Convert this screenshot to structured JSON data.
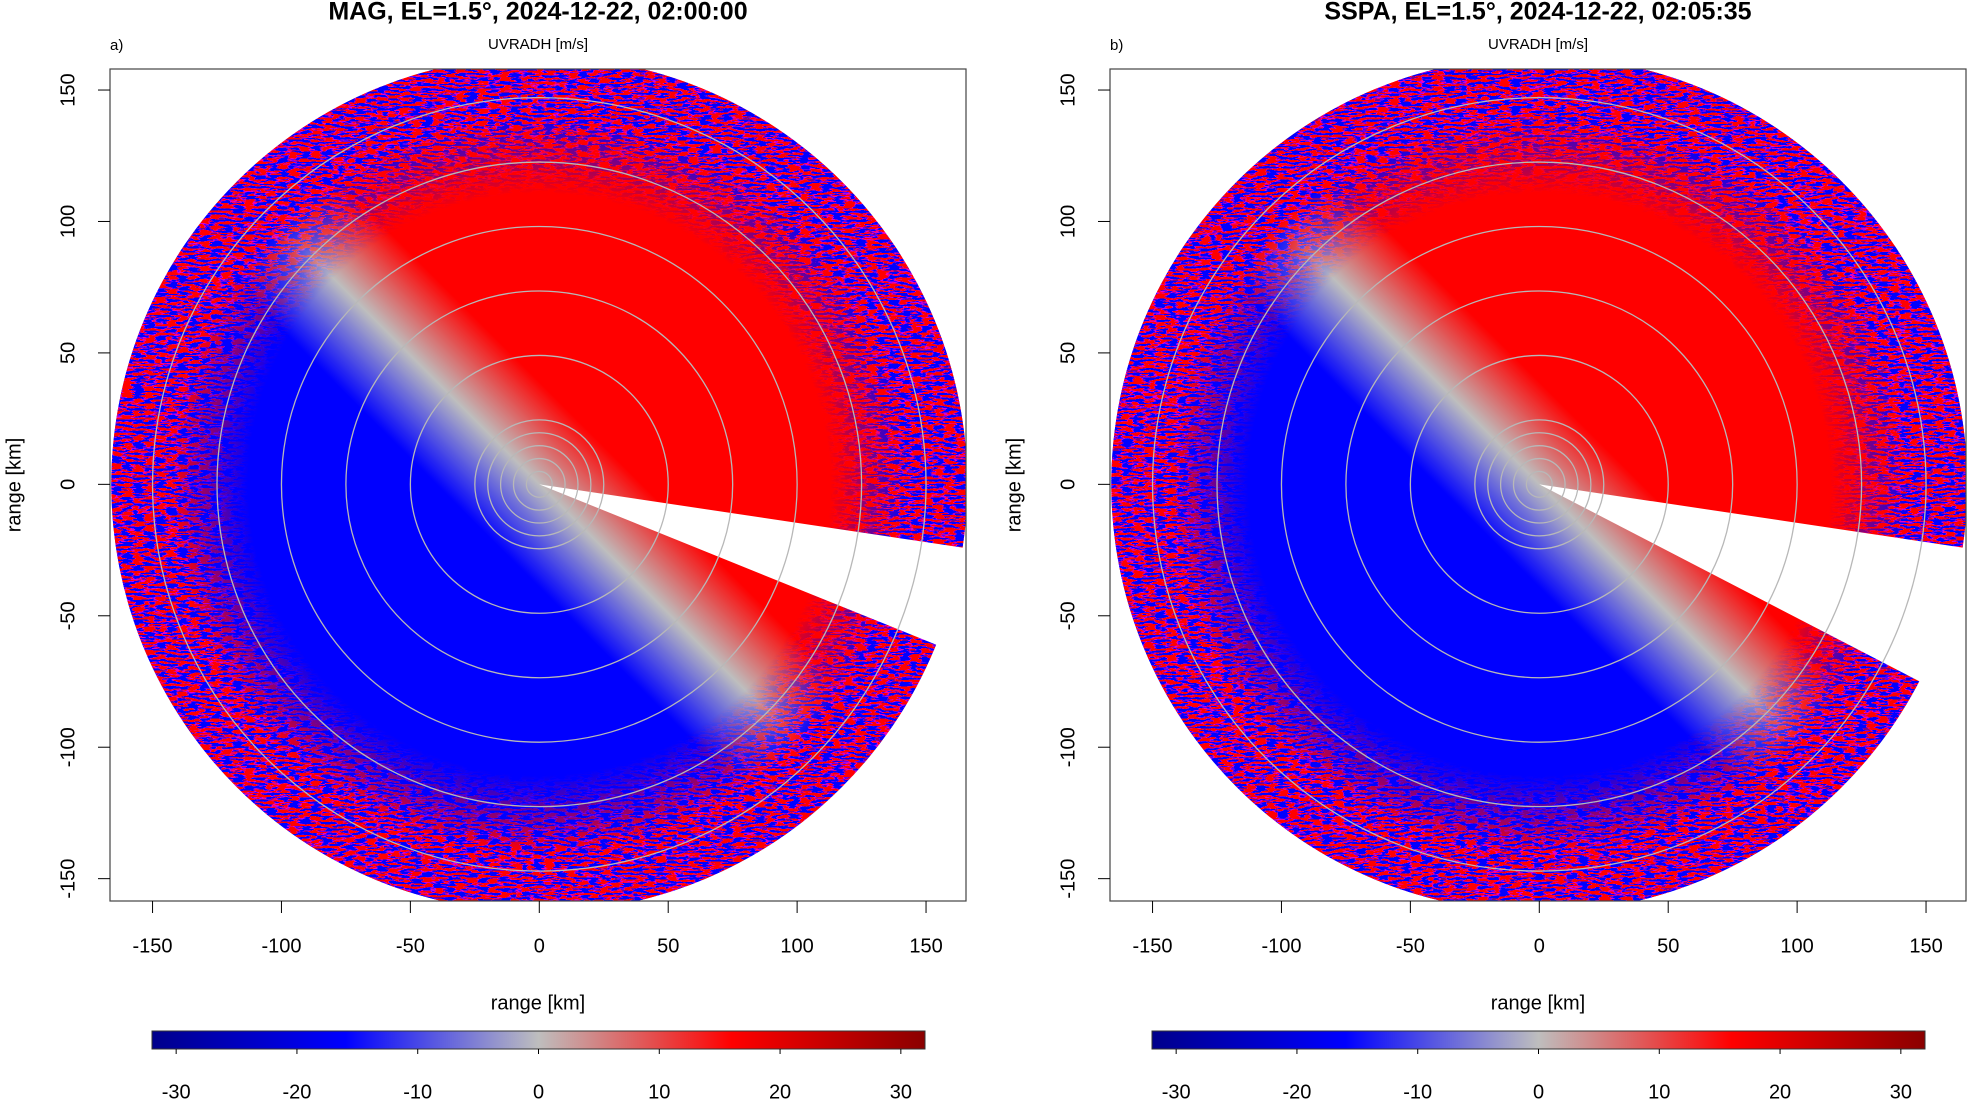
{
  "chart_data": [
    {
      "type": "ppi",
      "title": "MAG, EL=1.5°, 2024-12-22, 02:00:00",
      "panel_label": "a)",
      "subtitle": "UVRADH [m/s]",
      "xlabel": "range [km]",
      "ylabel": "range [km]",
      "xlim": [
        -166.5,
        165.5
      ],
      "ylim": [
        -158.5,
        158
      ],
      "xticks": [
        -150,
        -100,
        -50,
        0,
        50,
        100,
        150
      ],
      "yticks": [
        -150,
        -100,
        -50,
        0,
        50,
        100,
        150
      ],
      "range_rings": [
        5,
        10,
        15,
        20,
        25,
        50,
        75,
        100,
        125,
        150
      ],
      "colorbar": {
        "lim": [
          -32,
          32
        ],
        "ticks": [
          -30,
          -20,
          -10,
          0,
          10,
          20,
          30
        ],
        "colors": [
          "#00008b",
          "#0000ff",
          "#bebebe",
          "#ff0000",
          "#8b0000"
        ]
      }
    },
    {
      "type": "ppi",
      "title": "SSPA, EL=1.5°, 2024-12-22, 02:05:35",
      "panel_label": "b)",
      "subtitle": "UVRADH [m/s]",
      "xlabel": "range [km]",
      "ylabel": "range [km]",
      "xlim": [
        -166.5,
        165.5
      ],
      "ylim": [
        -158.5,
        158
      ],
      "xticks": [
        -150,
        -100,
        -50,
        0,
        50,
        100,
        150
      ],
      "yticks": [
        -150,
        -100,
        -50,
        0,
        50,
        100,
        150
      ],
      "range_rings": [
        5,
        10,
        15,
        20,
        25,
        50,
        75,
        100,
        125,
        150
      ],
      "colorbar": {
        "lim": [
          -32,
          32
        ],
        "ticks": [
          -30,
          -20,
          -10,
          0,
          10,
          20,
          30
        ],
        "colors": [
          "#00008b",
          "#0000ff",
          "#bebebe",
          "#ff0000",
          "#8b0000"
        ]
      }
    }
  ]
}
